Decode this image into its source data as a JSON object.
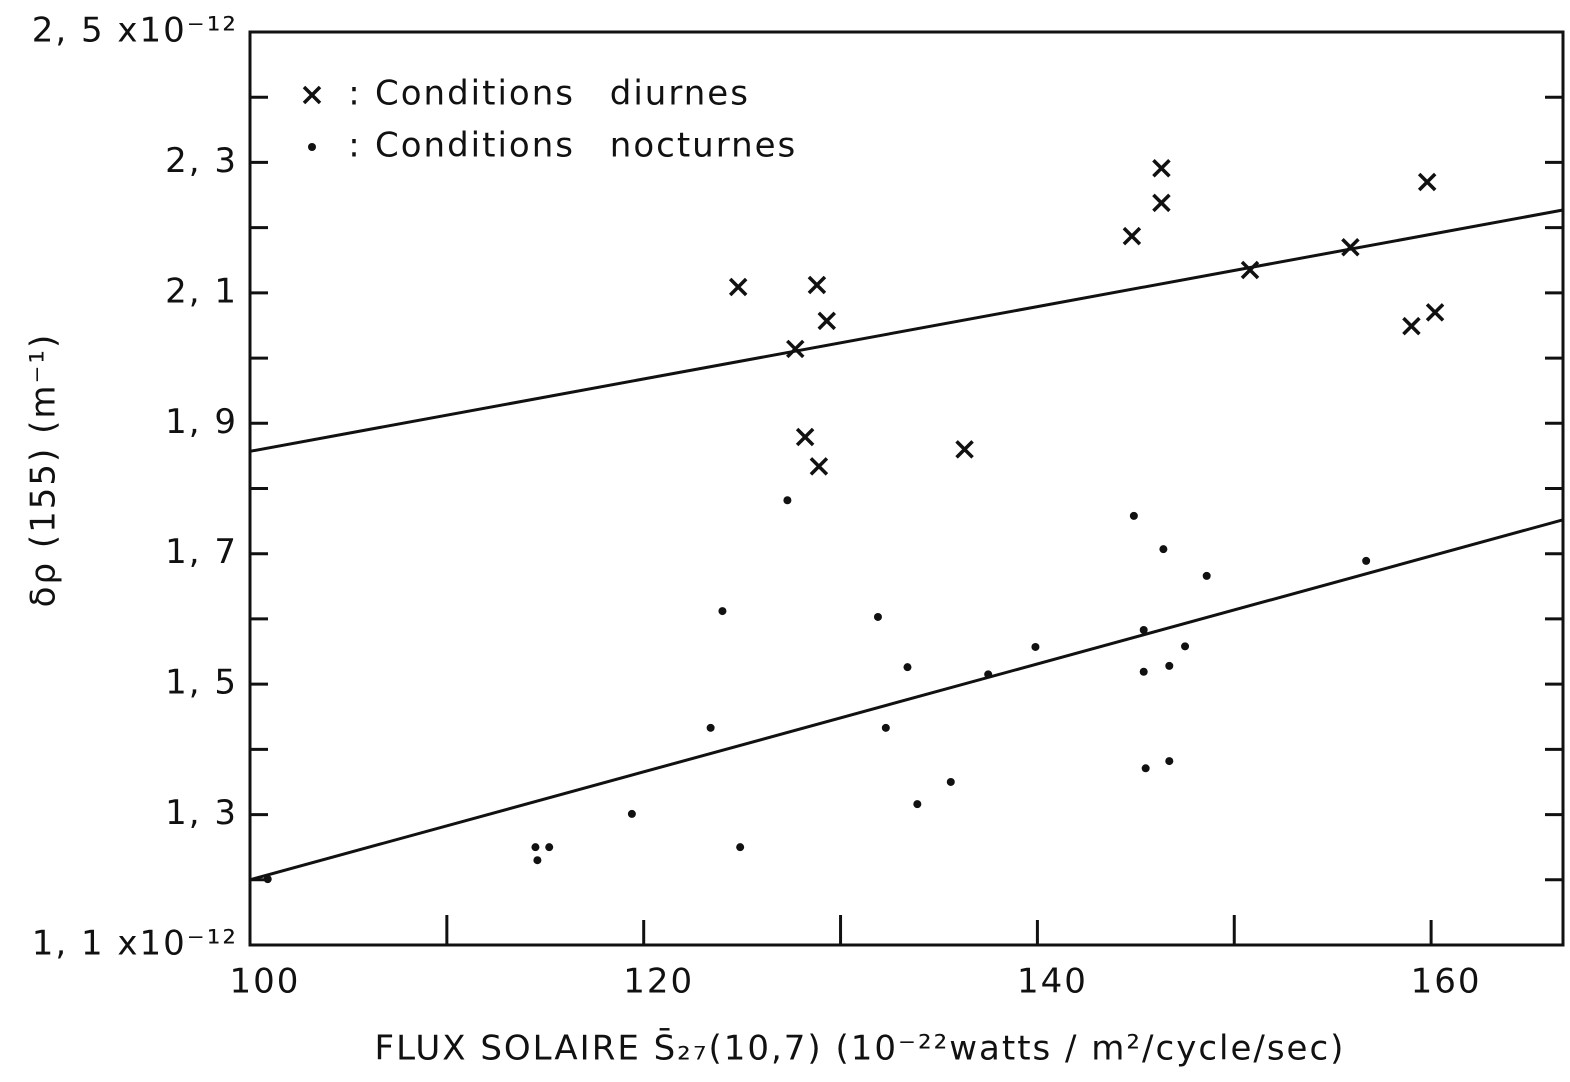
{
  "chart_data": {
    "type": "scatter",
    "x_label": "FLUX SOLAIRE S̄₂₇(10,7)  (10⁻²²watts / m²/cycle/sec)",
    "y_label": "δρ  (155)   (m⁻¹)",
    "xlim": [
      100,
      166.7
    ],
    "ylim": [
      1.1,
      2.5
    ],
    "xticks": [
      100,
      120,
      140,
      160
    ],
    "xticks_minor": [
      110,
      130,
      150
    ],
    "yticks": [
      {
        "value": 1.1,
        "label": "1, 1 x10⁻¹²"
      },
      {
        "value": 1.3,
        "label": "1, 3"
      },
      {
        "value": 1.5,
        "label": "1, 5"
      },
      {
        "value": 1.7,
        "label": "1, 7"
      },
      {
        "value": 1.9,
        "label": "1, 9"
      },
      {
        "value": 2.1,
        "label": "2, 1"
      },
      {
        "value": 2.3,
        "label": "2, 3"
      },
      {
        "value": 2.5,
        "label": "2, 5 x10⁻¹²"
      }
    ],
    "yticks_minor": [
      1.2,
      1.4,
      1.6,
      1.8,
      2.0,
      2.2,
      2.4
    ],
    "legend_position": "upper left",
    "series": [
      {
        "name": "Conditions diurnes",
        "marker": "x",
        "color": "#111111",
        "x": [
          124.8,
          128.8,
          129.3,
          127.7,
          128.2,
          128.9,
          136.3,
          144.8,
          146.3,
          146.3,
          150.8,
          155.9,
          159.8,
          159.0,
          160.2
        ],
        "values": [
          2.109,
          2.112,
          2.057,
          2.014,
          1.879,
          1.834,
          1.86,
          2.187,
          2.291,
          2.238,
          2.135,
          2.17,
          2.27,
          2.049,
          2.07
        ]
      },
      {
        "name": "Conditions nocturnes",
        "marker": "dot",
        "color": "#111111",
        "x": [
          100.9,
          114.5,
          115.2,
          114.6,
          119.4,
          124.0,
          123.4,
          124.9,
          127.3,
          131.9,
          132.3,
          133.4,
          133.9,
          135.6,
          137.5,
          139.9,
          144.9,
          146.4,
          148.6,
          145.4,
          145.4,
          146.7,
          147.5,
          145.5,
          146.7,
          156.7
        ],
        "values": [
          1.201,
          1.25,
          1.25,
          1.23,
          1.301,
          1.612,
          1.433,
          1.25,
          1.782,
          1.603,
          1.433,
          1.526,
          1.316,
          1.35,
          1.515,
          1.557,
          1.758,
          1.707,
          1.666,
          1.583,
          1.519,
          1.528,
          1.558,
          1.371,
          1.382,
          1.689
        ]
      }
    ],
    "fit_lines": [
      {
        "x": [
          100,
          166.7
        ],
        "values": [
          1.857,
          2.227
        ]
      },
      {
        "x": [
          100,
          166.7
        ],
        "values": [
          1.2,
          1.752
        ]
      }
    ]
  }
}
